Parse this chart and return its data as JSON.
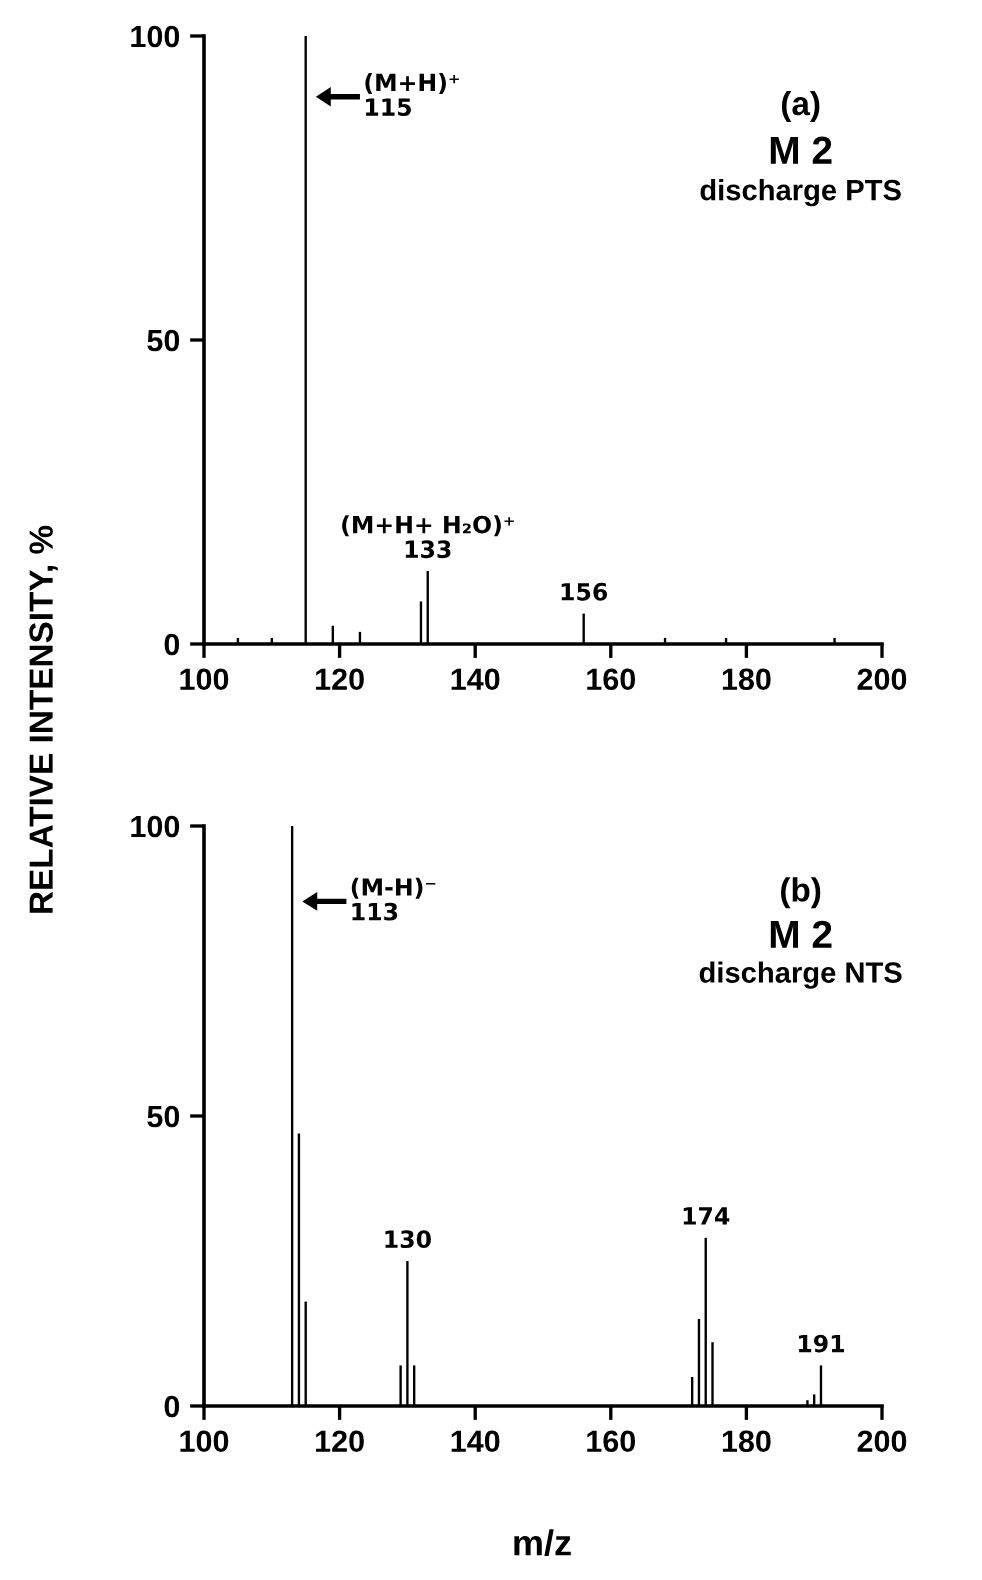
{
  "chart_data": [
    {
      "type": "bar",
      "title": "(a)",
      "subtitle": "M 2",
      "ylabel": "RELATIVE INTENSITY, %",
      "x": [
        105,
        110,
        115,
        119,
        123,
        132,
        133,
        156,
        168,
        177,
        193
      ],
      "values": [
        1,
        1,
        100,
        3,
        2,
        7,
        12,
        5,
        1,
        1,
        1
      ],
      "color": "#000000",
      "xlim": [
        100,
        200
      ],
      "xticks": [
        100,
        120,
        140,
        160,
        180,
        200
      ],
      "ylim": [
        0,
        100
      ],
      "yticks": [
        0,
        50,
        100
      ],
      "grid": false,
      "annotations": [
        "discharge PTS",
        {
          "text": "(M+H)⁺\n115",
          "x": 115,
          "y": 90
        },
        {
          "text": "(M+H+ H₂O)⁺\n133",
          "x": 133,
          "y": 12
        },
        {
          "text": "156",
          "x": 156,
          "y": 5
        }
      ]
    },
    {
      "type": "bar",
      "title": "(b)",
      "subtitle": "M 2",
      "xlabel": "m/z",
      "x": [
        113,
        114,
        115,
        129,
        130,
        131,
        172,
        173,
        174,
        175,
        189,
        190,
        191
      ],
      "values": [
        100,
        47,
        18,
        7,
        25,
        7,
        5,
        15,
        29,
        11,
        1,
        2,
        7
      ],
      "color": "#000000",
      "xlim": [
        100,
        200
      ],
      "xticks": [
        100,
        120,
        140,
        160,
        180,
        200
      ],
      "ylim": [
        0,
        100
      ],
      "yticks": [
        0,
        50,
        100
      ],
      "grid": false,
      "annotations": [
        "discharge NTS",
        {
          "text": "(M-H)⁻\n113",
          "x": 113,
          "y": 87
        },
        {
          "text": "130",
          "x": 130,
          "y": 25
        },
        {
          "text": "174",
          "x": 174,
          "y": 29
        },
        {
          "text": "191",
          "x": 191,
          "y": 7
        }
      ]
    }
  ]
}
